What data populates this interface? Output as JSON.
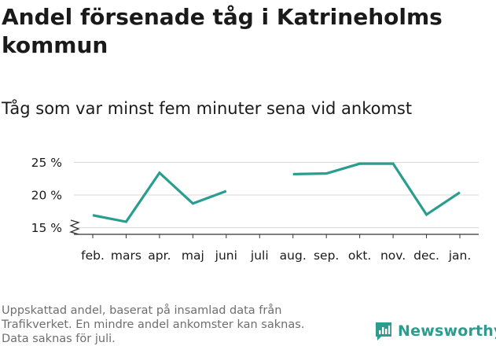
{
  "title": "Andel försenade tåg i Katrineholms kommun",
  "subtitle": "Tåg som var minst fem minuter sena vid ankomst",
  "footer": {
    "lines": [
      "Uppskattad andel, baserat på insamlad data från",
      "Trafikverket. En mindre andel ankomster kan saknas.",
      "Data saknas för juli."
    ]
  },
  "brand": {
    "name": "Newsworthy",
    "icon": "newsworthy-logo-icon",
    "color": "#2a9d8f"
  },
  "chart_data": {
    "type": "line",
    "categories": [
      "feb.",
      "mars",
      "apr.",
      "maj",
      "juni",
      "juli",
      "aug.",
      "sep.",
      "okt.",
      "nov.",
      "dec.",
      "jan."
    ],
    "series": [
      {
        "values": [
          16.9,
          15.9,
          23.4,
          18.7,
          20.6,
          null,
          23.2,
          23.3,
          24.8,
          24.8,
          17.0,
          20.4
        ],
        "color": "#2a9d8f"
      }
    ],
    "yticks": [
      15,
      20,
      25
    ],
    "ytick_labels": [
      "15 %",
      "20 %",
      "25 %"
    ],
    "ylim": [
      14,
      25.5
    ],
    "y_axis_break": true,
    "grid": true,
    "xlabel": "",
    "ylabel": ""
  }
}
